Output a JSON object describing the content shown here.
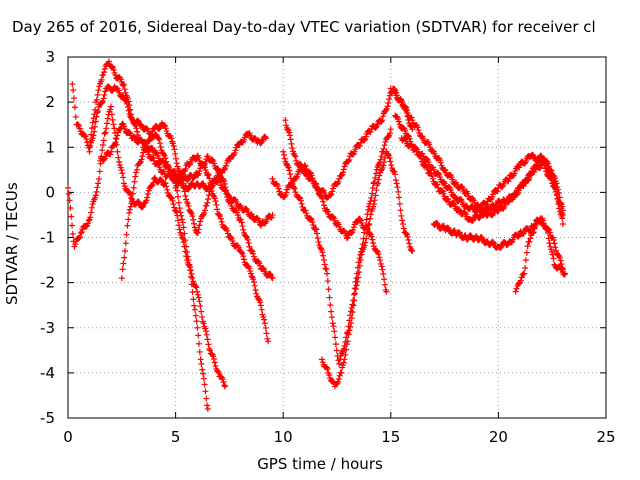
{
  "chart_data": {
    "type": "scatter",
    "title": "Day 265 of 2016, Sidereal Day-to-day VTEC variation (SDTVAR) for receiver cl",
    "xlabel": "GPS time / hours",
    "ylabel": "SDTVAR / TECUs",
    "xlim": [
      0,
      25
    ],
    "ylim": [
      -5,
      3
    ],
    "xticks": [
      0,
      5,
      10,
      15,
      20,
      25
    ],
    "yticks": [
      -5,
      -4,
      -3,
      -2,
      -1,
      0,
      1,
      2,
      3
    ],
    "grid": true,
    "marker": "plus",
    "color": "#ff0000",
    "series": [
      {
        "x": [
          0.0,
          0.3,
          0.6,
          1.0,
          1.4,
          1.7,
          2.0,
          2.3,
          2.6,
          3.0,
          3.5,
          4.0,
          4.5,
          5.0,
          5.3,
          5.6,
          6.0,
          6.3,
          6.6,
          7.0,
          7.3
        ],
        "y": [
          0.1,
          -1.2,
          -0.9,
          -0.6,
          0.2,
          1.3,
          1.9,
          0.9,
          0.2,
          -0.2,
          -0.3,
          0.3,
          0.2,
          -0.4,
          -1.0,
          -1.6,
          -2.2,
          -2.9,
          -3.5,
          -4.0,
          -4.3
        ]
      },
      {
        "x": [
          0.2,
          0.4,
          0.7,
          1.0,
          1.3,
          1.6,
          1.9,
          2.2,
          2.6,
          3.0,
          3.4,
          3.8,
          4.2,
          4.6,
          5.0,
          5.3,
          5.6,
          5.9,
          6.2,
          6.5
        ],
        "y": [
          2.4,
          1.5,
          1.3,
          1.0,
          2.0,
          2.6,
          2.9,
          2.6,
          2.4,
          1.6,
          1.5,
          1.3,
          1.2,
          0.6,
          0.2,
          -0.6,
          -1.5,
          -2.6,
          -3.8,
          -4.8
        ]
      },
      {
        "x": [
          1.0,
          1.4,
          1.8,
          2.2,
          2.6,
          3.0,
          3.5,
          4.0,
          4.5,
          5.0,
          5.5,
          6.0,
          6.5,
          7.0,
          7.5,
          8.0,
          8.5,
          9.0,
          9.5
        ],
        "y": [
          0.9,
          1.8,
          2.3,
          2.3,
          2.1,
          1.6,
          1.0,
          0.7,
          0.4,
          0.3,
          0.1,
          0.2,
          0.1,
          0.3,
          -0.2,
          -0.6,
          -1.3,
          -1.7,
          -1.9
        ]
      },
      {
        "x": [
          1.5,
          2.0,
          2.5,
          3.0,
          3.5,
          4.0,
          4.5,
          5.0,
          5.5,
          6.0,
          6.5,
          7.0,
          7.5,
          8.0,
          8.5,
          9.0,
          9.5
        ],
        "y": [
          0.7,
          0.9,
          1.5,
          1.2,
          1.1,
          0.9,
          0.6,
          0.4,
          0.3,
          0.4,
          0.8,
          0.5,
          -0.1,
          -0.3,
          -0.5,
          -0.7,
          -0.5
        ]
      },
      {
        "x": [
          2.5,
          2.8,
          3.2,
          3.6,
          4.0,
          4.4,
          4.8,
          5.2,
          5.6,
          6.0,
          6.4,
          6.8,
          7.2,
          7.6,
          8.0,
          8.4,
          8.8,
          9.2
        ],
        "y": [
          -1.9,
          -0.6,
          0.5,
          1.0,
          1.4,
          1.5,
          1.2,
          0.4,
          -0.3,
          -0.9,
          -0.3,
          0.3,
          0.5,
          0.8,
          1.1,
          1.3,
          1.1,
          1.2
        ]
      },
      {
        "x": [
          5.0,
          5.5,
          6.0,
          6.5,
          7.0,
          7.5,
          8.0,
          8.5,
          9.0,
          9.3
        ],
        "y": [
          0.1,
          0.6,
          0.8,
          0.4,
          -0.5,
          -1.0,
          -1.3,
          -1.8,
          -2.6,
          -3.3
        ]
      },
      {
        "x": [
          10.0,
          10.5,
          11.0,
          11.5,
          12.0,
          12.3,
          12.6,
          13.0,
          13.4,
          13.8,
          14.2,
          14.6,
          15.0
        ],
        "y": [
          0.9,
          0.1,
          -0.4,
          -0.8,
          -1.7,
          -2.9,
          -3.8,
          -3.1,
          -1.9,
          -0.8,
          0.2,
          0.9,
          1.4
        ]
      },
      {
        "x": [
          11.8,
          12.1,
          12.4,
          12.7,
          13.0,
          13.3,
          13.6,
          14.0,
          14.4,
          14.8,
          15.2,
          15.6,
          16.0
        ],
        "y": [
          -3.7,
          -4.0,
          -4.3,
          -4.0,
          -3.3,
          -2.4,
          -1.5,
          -0.7,
          0.2,
          0.9,
          0.4,
          -0.8,
          -1.3
        ]
      },
      {
        "x": [
          9.5,
          10.0,
          10.5,
          11.0,
          11.5,
          12.0,
          12.5,
          13.0,
          13.5,
          14.0,
          14.5,
          14.8
        ],
        "y": [
          0.3,
          -0.1,
          0.3,
          0.6,
          0.2,
          -0.4,
          -0.7,
          -1.0,
          -0.6,
          -0.9,
          -1.5,
          -2.2
        ]
      },
      {
        "x": [
          10.1,
          10.6,
          11.1,
          11.6,
          12.1,
          12.6,
          13.1,
          13.6,
          14.1,
          14.6,
          15.1,
          15.6,
          16.0
        ],
        "y": [
          1.6,
          0.7,
          0.4,
          0.1,
          -0.1,
          0.3,
          0.8,
          1.1,
          1.4,
          1.6,
          2.3,
          1.9,
          1.4
        ]
      },
      {
        "x": [
          15.0,
          15.5,
          16.0,
          16.5,
          17.0,
          17.5,
          18.0,
          18.5,
          19.0,
          19.5,
          20.0,
          20.5,
          21.0,
          21.5,
          22.0,
          22.5,
          23.0
        ],
        "y": [
          2.3,
          2.0,
          1.6,
          1.2,
          0.9,
          0.5,
          0.2,
          0.0,
          -0.3,
          -0.5,
          -0.4,
          -0.2,
          0.1,
          0.4,
          0.8,
          0.4,
          -0.7
        ]
      },
      {
        "x": [
          15.5,
          16.0,
          16.5,
          17.0,
          17.5,
          18.0,
          18.5,
          19.0,
          19.5,
          20.0,
          20.5,
          21.0,
          21.5,
          22.0,
          22.5,
          23.0
        ],
        "y": [
          1.2,
          1.0,
          0.8,
          0.5,
          0.2,
          -0.1,
          -0.3,
          -0.4,
          -0.2,
          0.1,
          0.3,
          0.6,
          0.8,
          0.7,
          0.2,
          -0.4
        ]
      },
      {
        "x": [
          17.0,
          17.5,
          18.0,
          18.5,
          19.0,
          19.5,
          20.0,
          20.5,
          21.0,
          21.5,
          22.0,
          22.5,
          23.0
        ],
        "y": [
          -0.7,
          -0.8,
          -0.9,
          -1.0,
          -1.0,
          -1.1,
          -1.2,
          -1.1,
          -0.9,
          -0.8,
          -0.6,
          -1.0,
          -1.7
        ]
      },
      {
        "x": [
          15.2,
          15.7,
          16.2,
          16.7,
          17.2,
          17.7,
          18.2,
          18.7,
          19.2,
          19.7,
          20.2,
          20.7,
          21.2,
          21.7,
          22.2,
          22.7,
          23.0
        ],
        "y": [
          1.7,
          1.3,
          0.9,
          0.5,
          0.1,
          -0.2,
          -0.4,
          -0.6,
          -0.5,
          -0.3,
          -0.2,
          -0.1,
          0.2,
          0.5,
          0.7,
          0.2,
          -0.5
        ]
      },
      {
        "x": [
          20.8,
          21.0,
          21.2,
          21.4,
          21.6,
          21.8,
          22.0,
          22.3,
          22.6,
          22.9,
          23.1
        ],
        "y": [
          -2.2,
          -2.0,
          -1.8,
          -1.1,
          -0.9,
          -0.6,
          -0.6,
          -0.9,
          -1.6,
          -1.7,
          -1.8
        ]
      }
    ]
  }
}
